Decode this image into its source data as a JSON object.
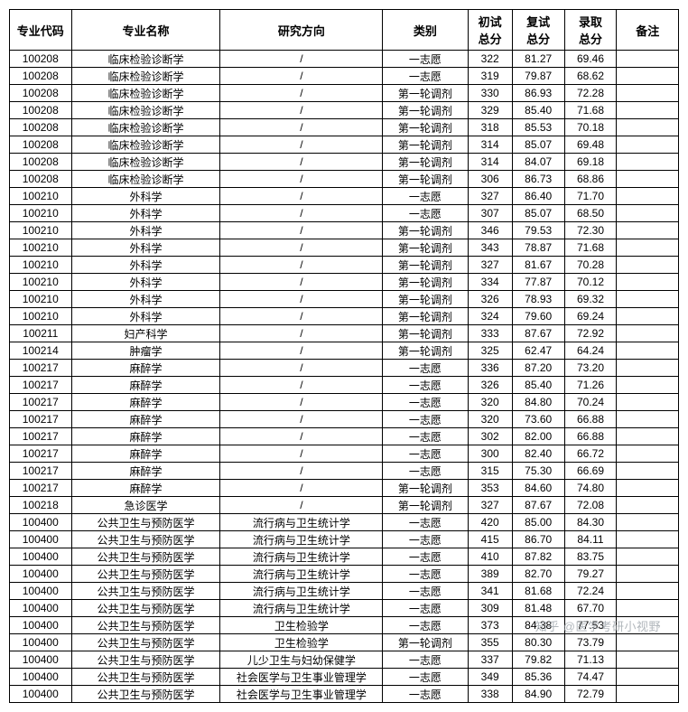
{
  "headers": [
    "专业代码",
    "专业名称",
    "研究方向",
    "类别",
    "初试总分",
    "复试总分",
    "录取总分",
    "备注"
  ],
  "rows": [
    [
      "100208",
      "临床检验诊断学",
      "/",
      "一志愿",
      "322",
      "81.27",
      "69.46",
      ""
    ],
    [
      "100208",
      "临床检验诊断学",
      "/",
      "一志愿",
      "319",
      "79.87",
      "68.62",
      ""
    ],
    [
      "100208",
      "临床检验诊断学",
      "/",
      "第一轮调剂",
      "330",
      "86.93",
      "72.28",
      ""
    ],
    [
      "100208",
      "临床检验诊断学",
      "/",
      "第一轮调剂",
      "329",
      "85.40",
      "71.68",
      ""
    ],
    [
      "100208",
      "临床检验诊断学",
      "/",
      "第一轮调剂",
      "318",
      "85.53",
      "70.18",
      ""
    ],
    [
      "100208",
      "临床检验诊断学",
      "/",
      "第一轮调剂",
      "314",
      "85.07",
      "69.48",
      ""
    ],
    [
      "100208",
      "临床检验诊断学",
      "/",
      "第一轮调剂",
      "314",
      "84.07",
      "69.18",
      ""
    ],
    [
      "100208",
      "临床检验诊断学",
      "/",
      "第一轮调剂",
      "306",
      "86.73",
      "68.86",
      ""
    ],
    [
      "100210",
      "外科学",
      "/",
      "一志愿",
      "327",
      "86.40",
      "71.70",
      ""
    ],
    [
      "100210",
      "外科学",
      "/",
      "一志愿",
      "307",
      "85.07",
      "68.50",
      ""
    ],
    [
      "100210",
      "外科学",
      "/",
      "第一轮调剂",
      "346",
      "79.53",
      "72.30",
      ""
    ],
    [
      "100210",
      "外科学",
      "/",
      "第一轮调剂",
      "343",
      "78.87",
      "71.68",
      ""
    ],
    [
      "100210",
      "外科学",
      "/",
      "第一轮调剂",
      "327",
      "81.67",
      "70.28",
      ""
    ],
    [
      "100210",
      "外科学",
      "/",
      "第一轮调剂",
      "334",
      "77.87",
      "70.12",
      ""
    ],
    [
      "100210",
      "外科学",
      "/",
      "第一轮调剂",
      "326",
      "78.93",
      "69.32",
      ""
    ],
    [
      "100210",
      "外科学",
      "/",
      "第一轮调剂",
      "324",
      "79.60",
      "69.24",
      ""
    ],
    [
      "100211",
      "妇产科学",
      "/",
      "第一轮调剂",
      "333",
      "87.67",
      "72.92",
      ""
    ],
    [
      "100214",
      "肿瘤学",
      "/",
      "第一轮调剂",
      "325",
      "62.47",
      "64.24",
      ""
    ],
    [
      "100217",
      "麻醉学",
      "/",
      "一志愿",
      "336",
      "87.20",
      "73.20",
      ""
    ],
    [
      "100217",
      "麻醉学",
      "/",
      "一志愿",
      "326",
      "85.40",
      "71.26",
      ""
    ],
    [
      "100217",
      "麻醉学",
      "/",
      "一志愿",
      "320",
      "84.80",
      "70.24",
      ""
    ],
    [
      "100217",
      "麻醉学",
      "/",
      "一志愿",
      "320",
      "73.60",
      "66.88",
      ""
    ],
    [
      "100217",
      "麻醉学",
      "/",
      "一志愿",
      "302",
      "82.00",
      "66.88",
      ""
    ],
    [
      "100217",
      "麻醉学",
      "/",
      "一志愿",
      "300",
      "82.40",
      "66.72",
      ""
    ],
    [
      "100217",
      "麻醉学",
      "/",
      "一志愿",
      "315",
      "75.30",
      "66.69",
      ""
    ],
    [
      "100217",
      "麻醉学",
      "/",
      "第一轮调剂",
      "353",
      "84.60",
      "74.80",
      ""
    ],
    [
      "100218",
      "急诊医学",
      "/",
      "第一轮调剂",
      "327",
      "87.67",
      "72.08",
      ""
    ],
    [
      "100400",
      "公共卫生与预防医学",
      "流行病与卫生统计学",
      "一志愿",
      "420",
      "85.00",
      "84.30",
      ""
    ],
    [
      "100400",
      "公共卫生与预防医学",
      "流行病与卫生统计学",
      "一志愿",
      "415",
      "86.70",
      "84.11",
      ""
    ],
    [
      "100400",
      "公共卫生与预防医学",
      "流行病与卫生统计学",
      "一志愿",
      "410",
      "87.82",
      "83.75",
      ""
    ],
    [
      "100400",
      "公共卫生与预防医学",
      "流行病与卫生统计学",
      "一志愿",
      "389",
      "82.70",
      "79.27",
      ""
    ],
    [
      "100400",
      "公共卫生与预防医学",
      "流行病与卫生统计学",
      "一志愿",
      "341",
      "81.68",
      "72.24",
      ""
    ],
    [
      "100400",
      "公共卫生与预防医学",
      "流行病与卫生统计学",
      "一志愿",
      "309",
      "81.48",
      "67.70",
      ""
    ],
    [
      "100400",
      "公共卫生与预防医学",
      "卫生检验学",
      "一志愿",
      "373",
      "84.38",
      "77.53",
      ""
    ],
    [
      "100400",
      "公共卫生与预防医学",
      "卫生检验学",
      "第一轮调剂",
      "355",
      "80.30",
      "73.79",
      ""
    ],
    [
      "100400",
      "公共卫生与预防医学",
      "儿少卫生与妇幼保健学",
      "一志愿",
      "337",
      "79.82",
      "71.13",
      ""
    ],
    [
      "100400",
      "公共卫生与预防医学",
      "社会医学与卫生事业管理学",
      "一志愿",
      "349",
      "85.36",
      "74.47",
      ""
    ],
    [
      "100400",
      "公共卫生与预防医学",
      "社会医学与卫生事业管理学",
      "一志愿",
      "338",
      "84.90",
      "72.79",
      ""
    ]
  ],
  "watermark": "知乎 @医学考研小视野"
}
